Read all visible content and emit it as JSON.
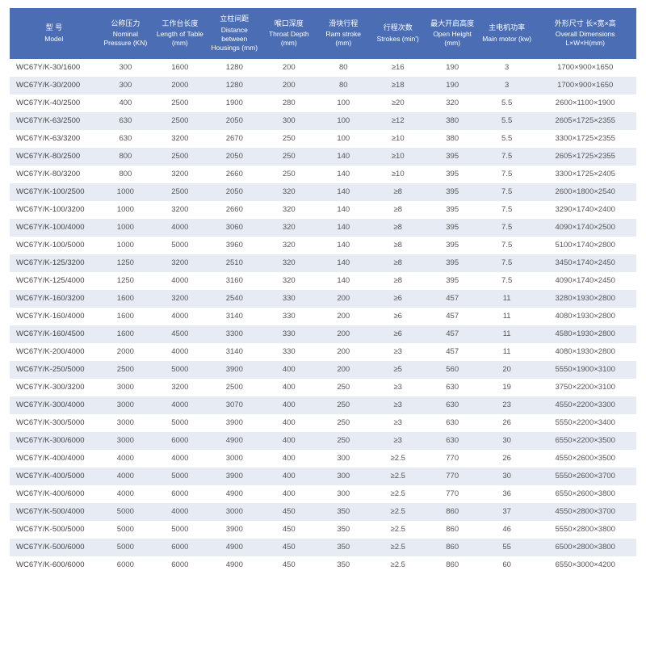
{
  "table": {
    "type": "table",
    "header_bg": "#4a6db3",
    "header_fg": "#ffffff",
    "row_even_bg": "#ffffff",
    "row_odd_bg": "#e6ebf4",
    "cell_fg": "#555555",
    "font_size_header": 9,
    "font_size_cell": 9.5,
    "columns": [
      {
        "cn": "型 号",
        "en": "Model"
      },
      {
        "cn": "公称压力",
        "en": "Nominal Pressure (KN)"
      },
      {
        "cn": "工作台长度",
        "en": "Length of Table (mm)"
      },
      {
        "cn": "立柱间距",
        "en": "Distance between Housings (mm)"
      },
      {
        "cn": "喉口深度",
        "en": "Throat Depth (mm)"
      },
      {
        "cn": "滑块行程",
        "en": "Ram stroke (mm)"
      },
      {
        "cn": "行程次数",
        "en": "Strokes (min')"
      },
      {
        "cn": "最大开启高度",
        "en": "Open Height (mm)"
      },
      {
        "cn": "主电机功率",
        "en": "Main motor (kw)"
      },
      {
        "cn": "外形尺寸 长×宽×高",
        "en": "Overall Dimensions L×W×H(mm)"
      }
    ],
    "rows": [
      [
        "WC67Y/K-30/1600",
        "300",
        "1600",
        "1280",
        "200",
        "80",
        "≥16",
        "190",
        "3",
        "1700×900×1650"
      ],
      [
        "WC67Y/K-30/2000",
        "300",
        "2000",
        "1280",
        "200",
        "80",
        "≥18",
        "190",
        "3",
        "1700×900×1650"
      ],
      [
        "WC67Y/K-40/2500",
        "400",
        "2500",
        "1900",
        "280",
        "100",
        "≥20",
        "320",
        "5.5",
        "2600×1100×1900"
      ],
      [
        "WC67Y/K-63/2500",
        "630",
        "2500",
        "2050",
        "300",
        "100",
        "≥12",
        "380",
        "5.5",
        "2605×1725×2355"
      ],
      [
        "WC67Y/K-63/3200",
        "630",
        "3200",
        "2670",
        "250",
        "100",
        "≥10",
        "380",
        "5.5",
        "3300×1725×2355"
      ],
      [
        "WC67Y/K-80/2500",
        "800",
        "2500",
        "2050",
        "250",
        "140",
        "≥10",
        "395",
        "7.5",
        "2605×1725×2355"
      ],
      [
        "WC67Y/K-80/3200",
        "800",
        "3200",
        "2660",
        "250",
        "140",
        "≥10",
        "395",
        "7.5",
        "3300×1725×2405"
      ],
      [
        "WC67Y/K-100/2500",
        "1000",
        "2500",
        "2050",
        "320",
        "140",
        "≥8",
        "395",
        "7.5",
        "2600×1800×2540"
      ],
      [
        "WC67Y/K-100/3200",
        "1000",
        "3200",
        "2660",
        "320",
        "140",
        "≥8",
        "395",
        "7.5",
        "3290×1740×2400"
      ],
      [
        "WC67Y/K-100/4000",
        "1000",
        "4000",
        "3060",
        "320",
        "140",
        "≥8",
        "395",
        "7.5",
        "4090×1740×2500"
      ],
      [
        "WC67Y/K-100/5000",
        "1000",
        "5000",
        "3960",
        "320",
        "140",
        "≥8",
        "395",
        "7.5",
        "5100×1740×2800"
      ],
      [
        "WC67Y/K-125/3200",
        "1250",
        "3200",
        "2510",
        "320",
        "140",
        "≥8",
        "395",
        "7.5",
        "3450×1740×2450"
      ],
      [
        "WC67Y/K-125/4000",
        "1250",
        "4000",
        "3160",
        "320",
        "140",
        "≥8",
        "395",
        "7.5",
        "4090×1740×2450"
      ],
      [
        "WC67Y/K-160/3200",
        "1600",
        "3200",
        "2540",
        "330",
        "200",
        "≥6",
        "457",
        "11",
        "3280×1930×2800"
      ],
      [
        "WC67Y/K-160/4000",
        "1600",
        "4000",
        "3140",
        "330",
        "200",
        "≥6",
        "457",
        "11",
        "4080×1930×2800"
      ],
      [
        "WC67Y/K-160/4500",
        "1600",
        "4500",
        "3300",
        "330",
        "200",
        "≥6",
        "457",
        "11",
        "4580×1930×2800"
      ],
      [
        "WC67Y/K-200/4000",
        "2000",
        "4000",
        "3140",
        "330",
        "200",
        "≥3",
        "457",
        "11",
        "4080×1930×2800"
      ],
      [
        "WC67Y/K-250/5000",
        "2500",
        "5000",
        "3900",
        "400",
        "200",
        "≥5",
        "560",
        "20",
        "5550×1900×3100"
      ],
      [
        "WC67Y/K-300/3200",
        "3000",
        "3200",
        "2500",
        "400",
        "250",
        "≥3",
        "630",
        "19",
        "3750×2200×3100"
      ],
      [
        "WC67Y/K-300/4000",
        "3000",
        "4000",
        "3070",
        "400",
        "250",
        "≥3",
        "630",
        "23",
        "4550×2200×3300"
      ],
      [
        "WC67Y/K-300/5000",
        "3000",
        "5000",
        "3900",
        "400",
        "250",
        "≥3",
        "630",
        "26",
        "5550×2200×3400"
      ],
      [
        "WC67Y/K-300/6000",
        "3000",
        "6000",
        "4900",
        "400",
        "250",
        "≥3",
        "630",
        "30",
        "6550×2200×3500"
      ],
      [
        "WC67Y/K-400/4000",
        "4000",
        "4000",
        "3000",
        "400",
        "300",
        "≥2.5",
        "770",
        "26",
        "4550×2600×3500"
      ],
      [
        "WC67Y/K-400/5000",
        "4000",
        "5000",
        "3900",
        "400",
        "300",
        "≥2.5",
        "770",
        "30",
        "5550×2600×3700"
      ],
      [
        "WC67Y/K-400/6000",
        "4000",
        "6000",
        "4900",
        "400",
        "300",
        "≥2.5",
        "770",
        "36",
        "6550×2600×3800"
      ],
      [
        "WC67Y/K-500/4000",
        "5000",
        "4000",
        "3000",
        "450",
        "350",
        "≥2.5",
        "860",
        "37",
        "4550×2800×3700"
      ],
      [
        "WC67Y/K-500/5000",
        "5000",
        "5000",
        "3900",
        "450",
        "350",
        "≥2.5",
        "860",
        "46",
        "5550×2800×3800"
      ],
      [
        "WC67Y/K-500/6000",
        "5000",
        "6000",
        "4900",
        "450",
        "350",
        "≥2.5",
        "860",
        "55",
        "6500×2800×3800"
      ],
      [
        "WC67Y/K-600/6000",
        "6000",
        "6000",
        "4900",
        "450",
        "350",
        "≥2.5",
        "860",
        "60",
        "6550×3000×4200"
      ]
    ]
  }
}
